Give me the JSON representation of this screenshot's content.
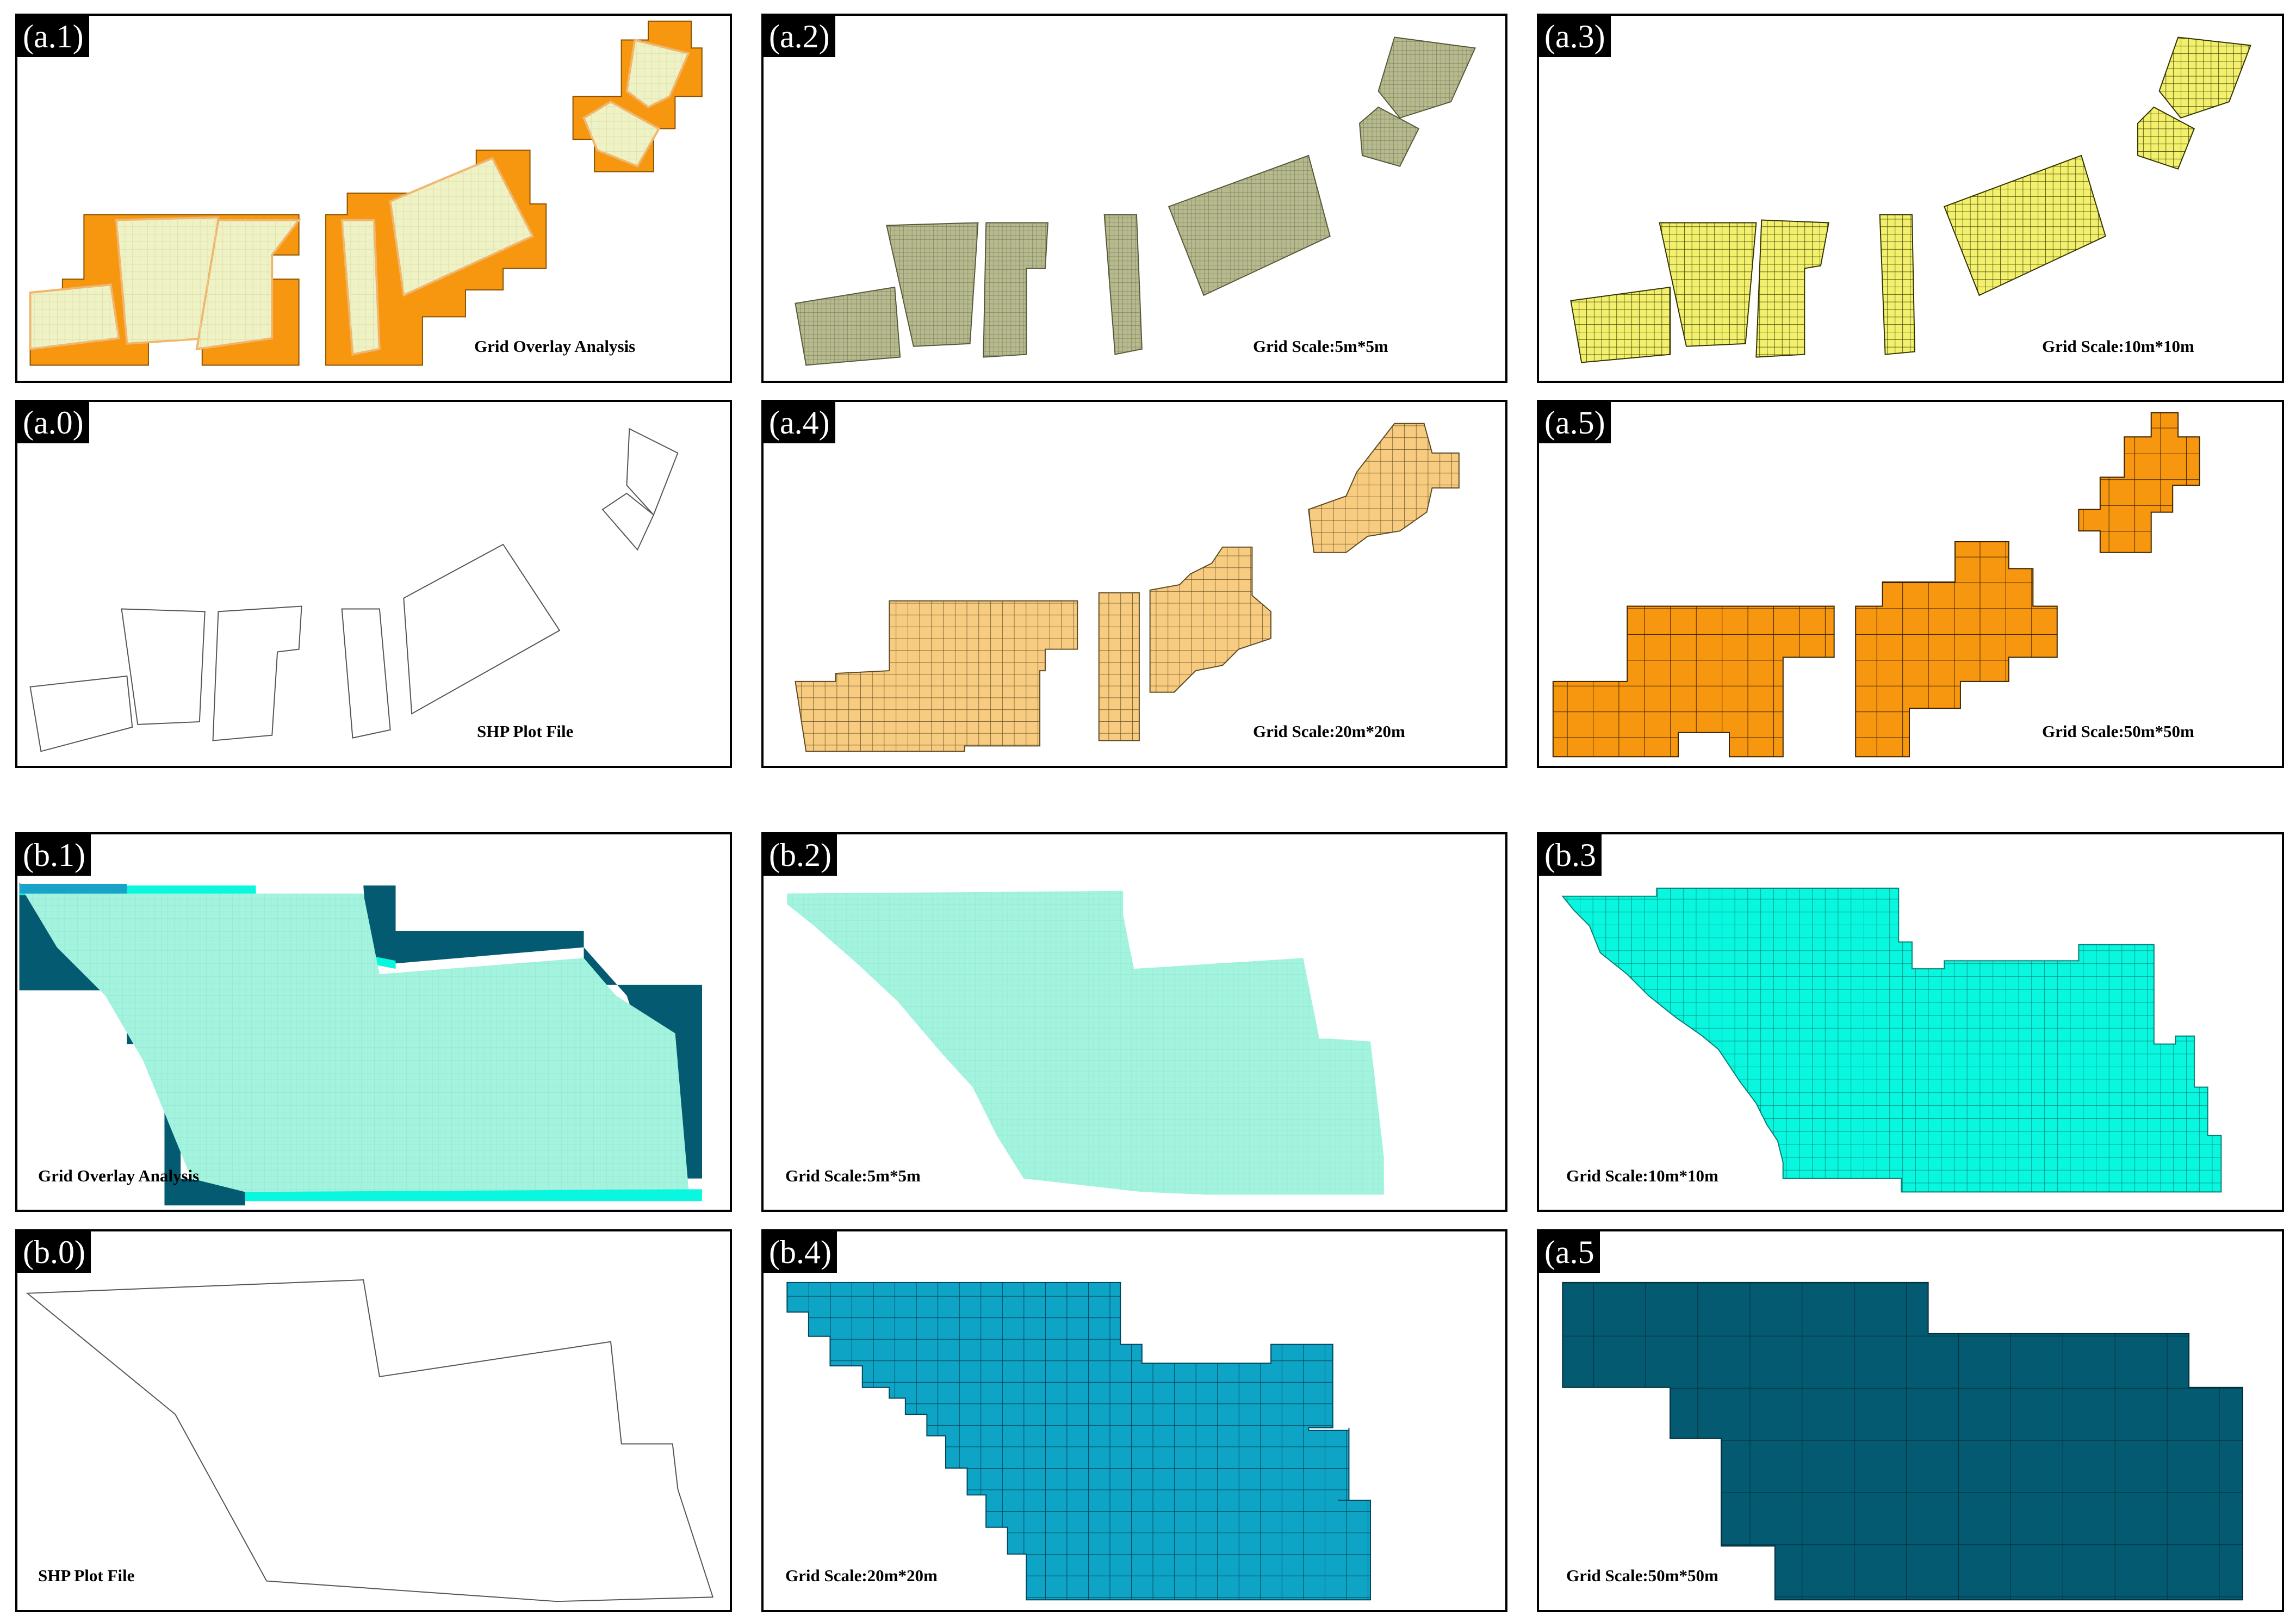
{
  "panels": {
    "a1": {
      "tag": "(a.1)",
      "caption": "Grid Overlay Analysis"
    },
    "a2": {
      "tag": "(a.2)",
      "caption": "Grid Scale:5m*5m"
    },
    "a3": {
      "tag": "(a.3)",
      "caption": "Grid Scale:10m*10m"
    },
    "a0": {
      "tag": "(a.0)",
      "caption": "SHP Plot File"
    },
    "a4": {
      "tag": "(a.4)",
      "caption": "Grid Scale:20m*20m"
    },
    "a5": {
      "tag": "(a.5)",
      "caption": "Grid Scale:50m*50m"
    },
    "b1": {
      "tag": "(b.1)",
      "caption": "Grid Overlay Analysis"
    },
    "b2": {
      "tag": "(b.2)",
      "caption": "Grid Scale:5m*5m"
    },
    "b3": {
      "tag": "(b.3",
      "caption": "Grid Scale:10m*10m"
    },
    "b0": {
      "tag": "(b.0)",
      "caption": "SHP Plot File"
    },
    "b4": {
      "tag": "(b.4)",
      "caption": "Grid Scale:20m*20m"
    },
    "b5": {
      "tag": "(a.5",
      "caption": "Grid Scale:50m*50m"
    }
  },
  "colors": {
    "pale_fill": "#eef2c4",
    "orange": "#f7960f",
    "olive": "#b7b98e",
    "yellow": "#f2f06c",
    "light_orange": "#f8cc80",
    "mint": "#a3f3df",
    "cyan": "#08f7de",
    "teal_dark": "#045a70",
    "blue_mid": "#0ea4c6"
  }
}
